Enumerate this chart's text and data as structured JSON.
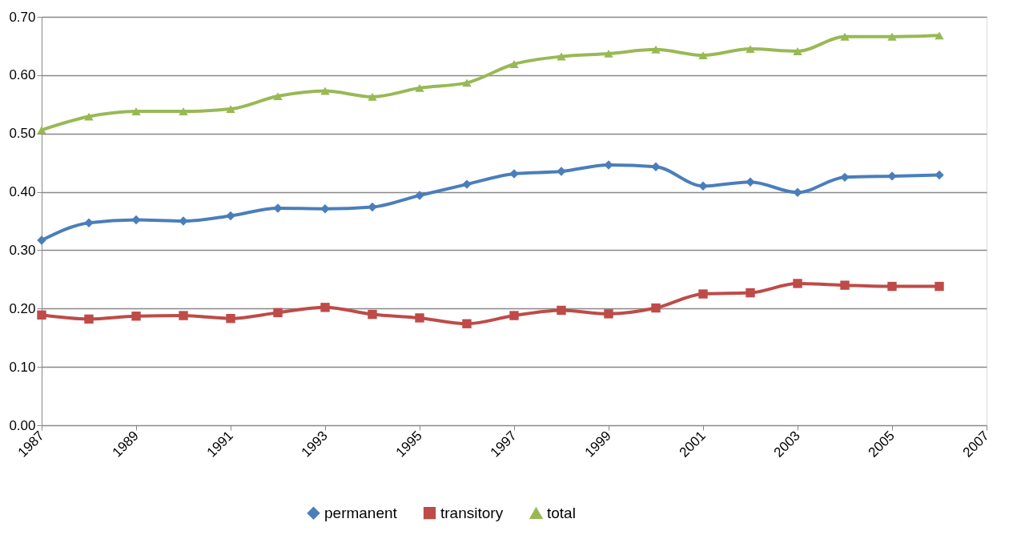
{
  "chart_data": {
    "type": "line",
    "x": [
      1987,
      1988,
      1989,
      1990,
      1991,
      1992,
      1993,
      1994,
      1995,
      1996,
      1997,
      1998,
      1999,
      2000,
      2001,
      2002,
      2003,
      2004,
      2005,
      2006
    ],
    "series": [
      {
        "name": "permanent",
        "color": "#4a7ebb",
        "marker": "diamond",
        "values": [
          0.317,
          0.347,
          0.352,
          0.35,
          0.359,
          0.372,
          0.371,
          0.374,
          0.394,
          0.413,
          0.431,
          0.435,
          0.446,
          0.443,
          0.41,
          0.417,
          0.399,
          0.425,
          0.427,
          0.429
        ]
      },
      {
        "name": "transitory",
        "color": "#be4b48",
        "marker": "square",
        "values": [
          0.189,
          0.182,
          0.187,
          0.188,
          0.183,
          0.193,
          0.202,
          0.19,
          0.184,
          0.174,
          0.188,
          0.197,
          0.191,
          0.201,
          0.225,
          0.227,
          0.243,
          0.24,
          0.238,
          0.238
        ]
      },
      {
        "name": "total",
        "color": "#98b954",
        "marker": "triangle",
        "values": [
          0.506,
          0.529,
          0.538,
          0.538,
          0.542,
          0.564,
          0.573,
          0.563,
          0.578,
          0.587,
          0.619,
          0.632,
          0.637,
          0.644,
          0.634,
          0.645,
          0.641,
          0.666,
          0.666,
          0.668
        ]
      }
    ],
    "xlim": [
      1987,
      2007
    ],
    "xticks": [
      1987,
      1989,
      1991,
      1993,
      1995,
      1997,
      1999,
      2001,
      2003,
      2005,
      2007
    ],
    "ylim": [
      0,
      0.7
    ],
    "yticks": [
      {
        "value": 0,
        "label": "0.00"
      },
      {
        "value": 0.1,
        "label": "0.10"
      },
      {
        "value": 0.2,
        "label": "0.20"
      },
      {
        "value": 0.3,
        "label": "0.30"
      },
      {
        "value": 0.4,
        "label": "0.40"
      },
      {
        "value": 0.5,
        "label": "0.50"
      },
      {
        "value": 0.6,
        "label": "0.60"
      },
      {
        "value": 0.7,
        "label": "0.70"
      }
    ],
    "grid": "y",
    "legend": "bottom",
    "line_style": "solid"
  }
}
